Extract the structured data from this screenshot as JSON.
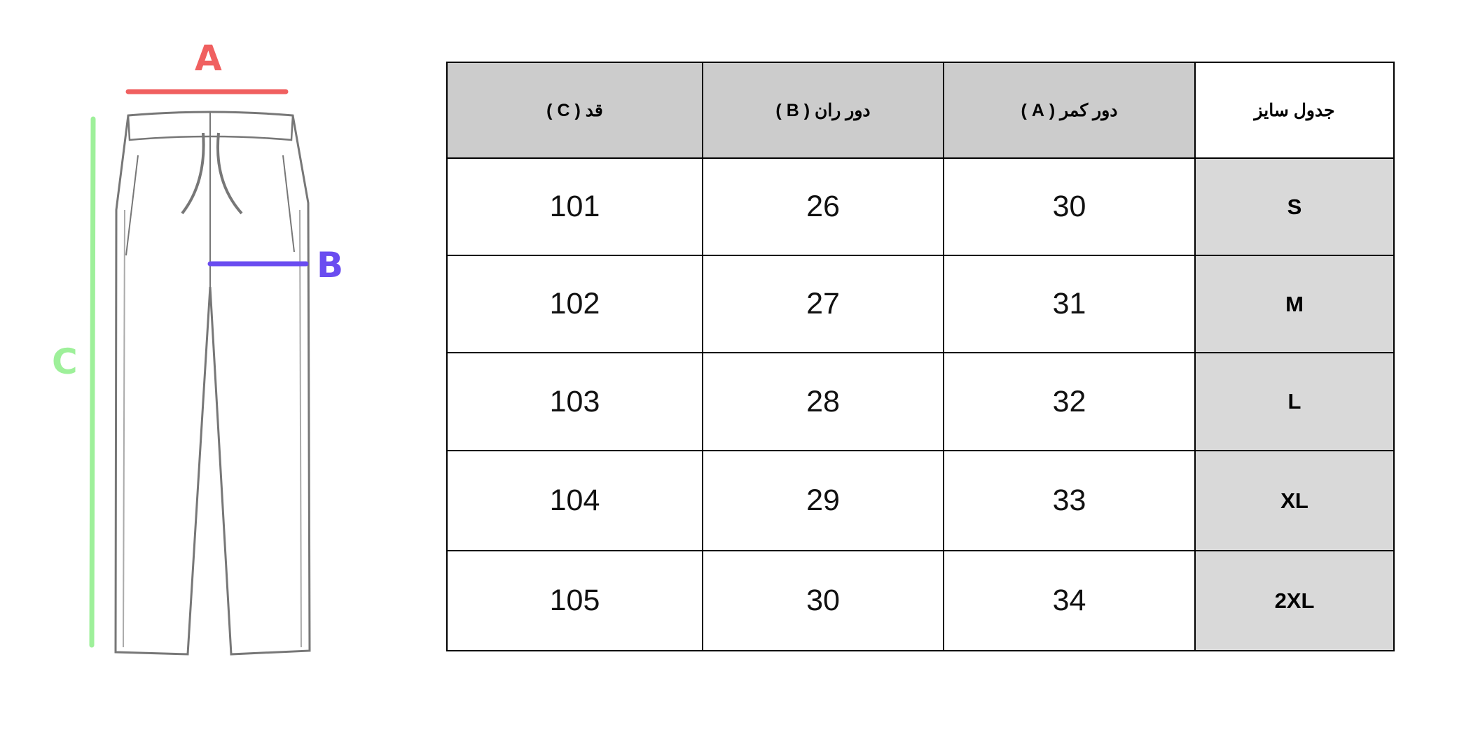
{
  "diagram": {
    "labels": {
      "a": "A",
      "b": "B",
      "c": "C"
    },
    "colors": {
      "a": "#f06060",
      "b": "#6a4cf0",
      "c": "#9ef09a"
    }
  },
  "table": {
    "corner": "جدول سایز",
    "headers": [
      "قد ( C )",
      "دور ران ( B )",
      "دور کمر ( A )"
    ],
    "rows": [
      {
        "size": "S",
        "c": "101",
        "b": "26",
        "a": "30"
      },
      {
        "size": "M",
        "c": "102",
        "b": "27",
        "a": "31"
      },
      {
        "size": "L",
        "c": "103",
        "b": "28",
        "a": "32"
      },
      {
        "size": "XL",
        "c": "104",
        "b": "29",
        "a": "33"
      },
      {
        "size": "2XL",
        "c": "105",
        "b": "30",
        "a": "34"
      }
    ]
  }
}
